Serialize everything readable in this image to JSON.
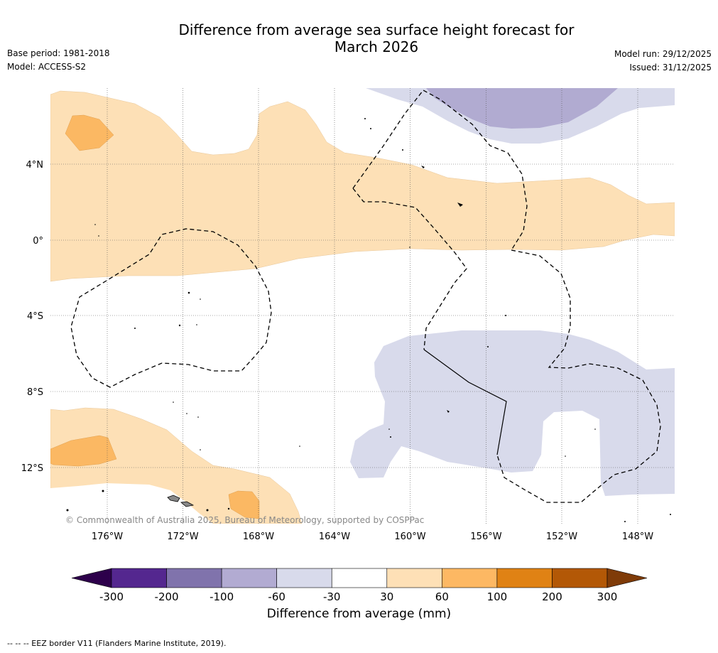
{
  "title_line1": "Difference from average sea surface height forecast for",
  "title_line2": "March 2026",
  "base_period": "Base period: 1981-2018",
  "model": "Model: ACCESS-S2",
  "model_run": "Model run: 29/12/2025",
  "issued": "Issued: 31/12/2025",
  "copyright": "© Commonwealth of Australia 2025, Bureau of Meteorology, supported by COSPPac",
  "lat_labels": [
    "4°N",
    "0°",
    "4°S",
    "8°S",
    "12°S"
  ],
  "lon_labels": [
    "176°W",
    "172°W",
    "168°W",
    "164°W",
    "160°W",
    "156°W",
    "152°W",
    "148°W"
  ],
  "colorbar": {
    "label": "Difference from average (mm)",
    "ticks": [
      "-300",
      "-200",
      "-100",
      "-60",
      "-30",
      "30",
      "60",
      "100",
      "200",
      "300"
    ],
    "colors": [
      "#54278f",
      "#8073ac",
      "#b2abd2",
      "#d8daeb",
      "#ffffff",
      "#fee0b6",
      "#fdb863",
      "#e08214",
      "#b35806"
    ],
    "under_color": "#2d004b",
    "over_color": "#7f3b08"
  },
  "fill_colors": {
    "light_orange": "#fde0b6",
    "orange": "#fbb863",
    "light_purple": "#d8daeb",
    "purple": "#b1abd1"
  },
  "footer": "-- -- -- EEZ border V11 (Flanders Marine Institute, 2019)."
}
